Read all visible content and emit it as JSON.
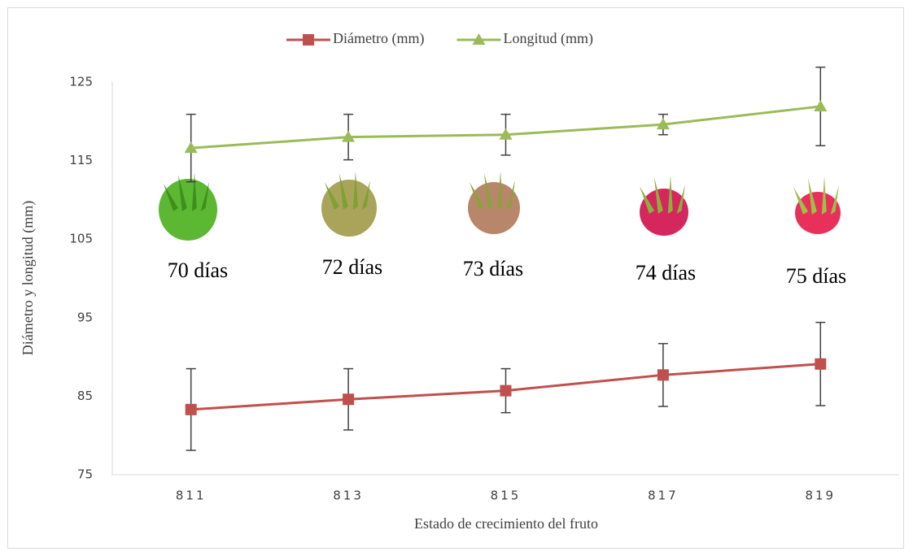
{
  "chart_data": {
    "type": "line",
    "y_label": "Diámetro y longitud (mm)",
    "x_label": "Estado de crecimiento del fruto",
    "categories": [
      "811",
      "813",
      "815",
      "817",
      "819"
    ],
    "series": [
      {
        "name": "Diámetro (mm)",
        "color": "#c0504d",
        "marker": "square",
        "values": [
          83.3,
          84.6,
          85.7,
          87.7,
          89.1
        ],
        "errors": [
          5.2,
          3.9,
          2.8,
          4.0,
          5.3
        ]
      },
      {
        "name": "Longitud (mm)",
        "color": "#9bbb59",
        "marker": "triangle",
        "values": [
          116.6,
          118.0,
          118.3,
          119.6,
          121.9
        ],
        "errors": [
          4.3,
          2.9,
          2.6,
          1.3,
          5.0
        ]
      }
    ],
    "ylim": [
      75,
      125
    ],
    "yticks": [
      75,
      85,
      95,
      105,
      115,
      125
    ],
    "legend": "top",
    "annotations": [
      "70 días",
      "72 días",
      "73 días",
      "74 días",
      "75 días"
    ]
  }
}
